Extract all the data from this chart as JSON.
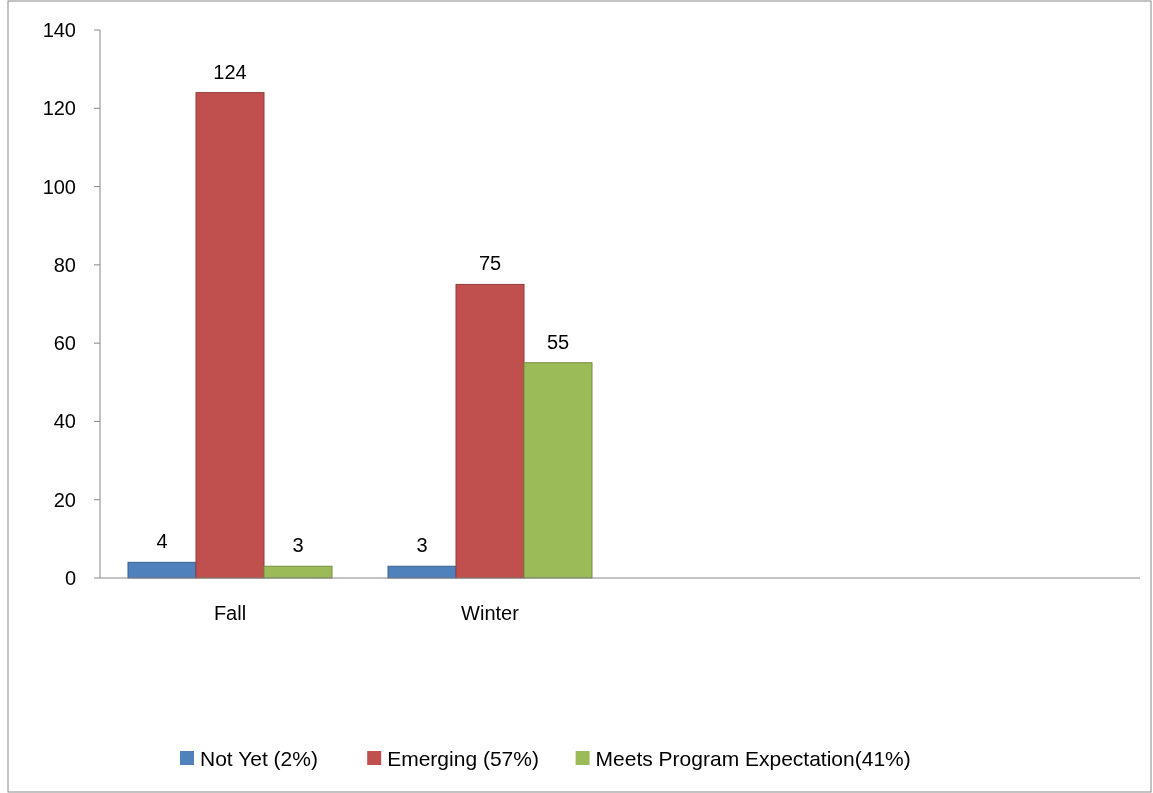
{
  "chart_data": {
    "type": "bar",
    "categories": [
      "Fall",
      "Winter",
      null,
      null
    ],
    "series": [
      {
        "name": "Not Yet (2%)",
        "color": "#4f81bd",
        "values": [
          4,
          3,
          null,
          null
        ]
      },
      {
        "name": "Emerging (57%)",
        "color": "#c0504d",
        "values": [
          124,
          75,
          null,
          null
        ]
      },
      {
        "name": "Meets Program Expectation(41%)",
        "color": "#9bbb59",
        "values": [
          3,
          55,
          null,
          null
        ]
      }
    ],
    "ylim": [
      0,
      140
    ],
    "yticks": [
      0,
      20,
      40,
      60,
      80,
      100,
      120,
      140
    ],
    "data_labels": true,
    "legend": "bottom",
    "grid": false
  }
}
